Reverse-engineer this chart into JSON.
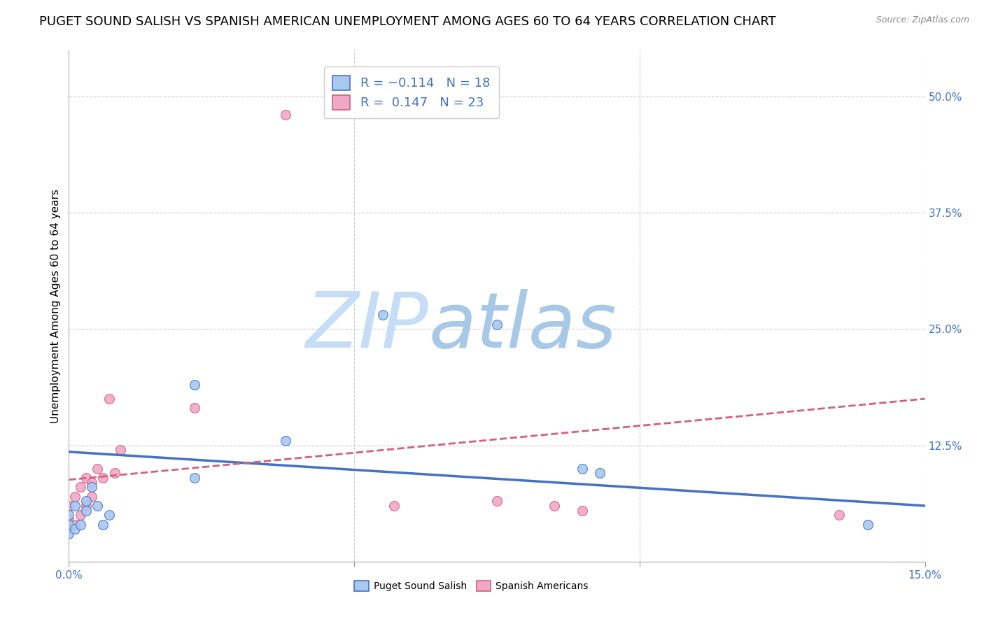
{
  "title": "PUGET SOUND SALISH VS SPANISH AMERICAN UNEMPLOYMENT AMONG AGES 60 TO 64 YEARS CORRELATION CHART",
  "source": "Source: ZipAtlas.com",
  "ylabel": "Unemployment Among Ages 60 to 64 years",
  "xlim": [
    0.0,
    0.15
  ],
  "ylim": [
    0.0,
    0.55
  ],
  "xticks": [
    0.0,
    0.05,
    0.1,
    0.15
  ],
  "xtick_labels": [
    "0.0%",
    "",
    "",
    "15.0%"
  ],
  "ytick_labels": [
    "",
    "12.5%",
    "25.0%",
    "37.5%",
    "50.0%"
  ],
  "yticks": [
    0.0,
    0.125,
    0.25,
    0.375,
    0.5
  ],
  "color_salish": "#a8c8f0",
  "color_spanish": "#f0a8c8",
  "line_color_salish": "#4472c4",
  "line_color_spanish": "#d4607a",
  "watermark_zip": "ZIP",
  "watermark_atlas": "atlas",
  "watermark_color_zip": "#c8dff5",
  "watermark_color_atlas": "#b0cce8",
  "salish_points_x": [
    0.0,
    0.0,
    0.0,
    0.001,
    0.001,
    0.002,
    0.003,
    0.003,
    0.004,
    0.005,
    0.006,
    0.007,
    0.022,
    0.022,
    0.038,
    0.055,
    0.075,
    0.09,
    0.093,
    0.14
  ],
  "salish_points_y": [
    0.03,
    0.04,
    0.05,
    0.035,
    0.06,
    0.04,
    0.055,
    0.065,
    0.08,
    0.06,
    0.04,
    0.05,
    0.09,
    0.19,
    0.13,
    0.265,
    0.255,
    0.1,
    0.095,
    0.04
  ],
  "spanish_points_x": [
    0.0,
    0.0,
    0.0,
    0.001,
    0.001,
    0.002,
    0.002,
    0.003,
    0.003,
    0.004,
    0.004,
    0.005,
    0.006,
    0.007,
    0.008,
    0.009,
    0.022,
    0.038,
    0.057,
    0.075,
    0.085,
    0.09,
    0.135
  ],
  "spanish_points_y": [
    0.035,
    0.045,
    0.06,
    0.04,
    0.07,
    0.05,
    0.08,
    0.06,
    0.09,
    0.07,
    0.085,
    0.1,
    0.09,
    0.175,
    0.095,
    0.12,
    0.165,
    0.48,
    0.06,
    0.065,
    0.06,
    0.055,
    0.05
  ],
  "salish_trend_x": [
    0.0,
    0.15
  ],
  "salish_trend_y": [
    0.118,
    0.06
  ],
  "spanish_trend_x": [
    0.0,
    0.15
  ],
  "spanish_trend_y": [
    0.088,
    0.175
  ],
  "background_color": "#ffffff",
  "grid_color": "#cccccc",
  "marker_size": 100,
  "title_fontsize": 13,
  "axis_label_fontsize": 11,
  "tick_fontsize": 11,
  "legend_fontsize": 13
}
